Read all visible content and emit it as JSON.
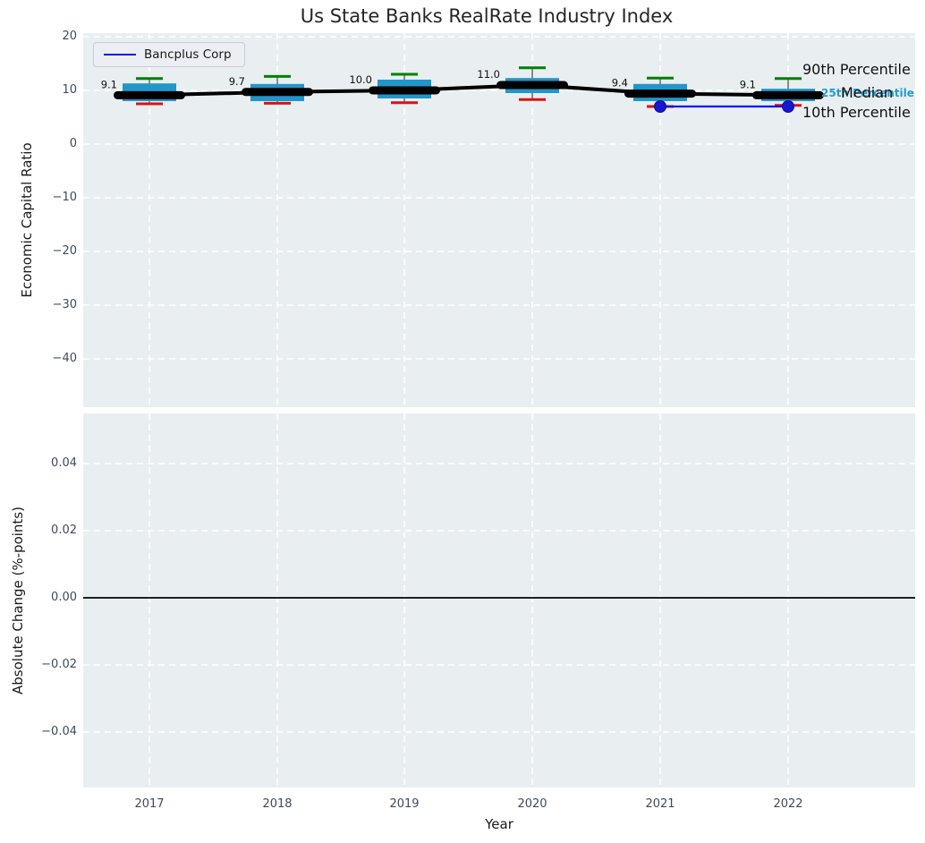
{
  "title": "Us State Banks RealRate Industry Index",
  "legend": {
    "label": "Bancplus Corp"
  },
  "annotations": {
    "p90": "90th Percentile",
    "median": "Median",
    "p25": "25th Percentile",
    "p10": "10th Percentile"
  },
  "top_axis": {
    "ylabel": "Economic Capital Ratio",
    "yticks": [
      {
        "label": "20",
        "value": 20
      },
      {
        "label": "10",
        "value": 10
      },
      {
        "label": "0",
        "value": 0
      },
      {
        "label": "−10",
        "value": -10
      },
      {
        "label": "−20",
        "value": -20
      },
      {
        "label": "−30",
        "value": -30
      },
      {
        "label": "−40",
        "value": -40
      }
    ]
  },
  "bottom_axis": {
    "ylabel": "Absolute Change (%-points)",
    "xlabel": "Year",
    "yticks": [
      {
        "label": "0.04",
        "value": 0.04
      },
      {
        "label": "0.02",
        "value": 0.02
      },
      {
        "label": "0.00",
        "value": 0.0
      },
      {
        "label": "−0.02",
        "value": -0.02
      },
      {
        "label": "−0.04",
        "value": -0.04
      }
    ]
  },
  "colors": {
    "axes_background": "#e9eef1",
    "grid": "#ffffff",
    "box_fill": "#2196c9",
    "median_line": "#000000",
    "whisker_high_cap": "#008000",
    "whisker_low_cap": "#dd1111",
    "whisker_stem": "#606060",
    "series_line": "#0d0dea",
    "series_marker": "#1717cf",
    "annotation_blue": "#1f9bd3",
    "tick_label": "#3d4b5e",
    "median_label": "#111111",
    "zero_line": "#000000"
  },
  "chart_data": [
    {
      "type": "box",
      "title": "Us State Banks RealRate Industry Index",
      "xlabel": "Year",
      "ylabel": "Economic Capital Ratio",
      "ylim": [
        -49,
        21
      ],
      "grid": true,
      "legend_position": "upper left",
      "categories": [
        "2017",
        "2018",
        "2019",
        "2020",
        "2021",
        "2022"
      ],
      "boxes": [
        {
          "year": "2017",
          "whisker_low": 7.5,
          "q1": 8.0,
          "median": 9.1,
          "q3": 11.3,
          "whisker_high": 12.2,
          "label": "9.1"
        },
        {
          "year": "2018",
          "whisker_low": 7.6,
          "q1": 8.0,
          "median": 9.7,
          "q3": 11.2,
          "whisker_high": 12.6,
          "label": "9.7"
        },
        {
          "year": "2019",
          "whisker_low": 7.7,
          "q1": 8.5,
          "median": 10.0,
          "q3": 12.0,
          "whisker_high": 13.0,
          "label": "10.0"
        },
        {
          "year": "2020",
          "whisker_low": 8.3,
          "q1": 9.5,
          "median": 11.0,
          "q3": 12.3,
          "whisker_high": 14.2,
          "label": "11.0"
        },
        {
          "year": "2021",
          "whisker_low": 7.0,
          "q1": 8.0,
          "median": 9.4,
          "q3": 11.2,
          "whisker_high": 12.3,
          "label": "9.4"
        },
        {
          "year": "2022",
          "whisker_low": 7.2,
          "q1": 8.0,
          "median": 9.1,
          "q3": 10.3,
          "whisker_high": 12.2,
          "label": "9.1"
        }
      ],
      "series": [
        {
          "name": "Bancplus Corp",
          "x": [
            "2021",
            "2022"
          ],
          "values": [
            7.0,
            7.0
          ]
        }
      ]
    },
    {
      "type": "line",
      "xlabel": "Year",
      "ylabel": "Absolute Change (%-points)",
      "ylim": [
        -0.055,
        0.055
      ],
      "grid": true,
      "categories": [
        "2017",
        "2018",
        "2019",
        "2020",
        "2021",
        "2022"
      ],
      "series": [],
      "zero_line": 0.0
    }
  ]
}
